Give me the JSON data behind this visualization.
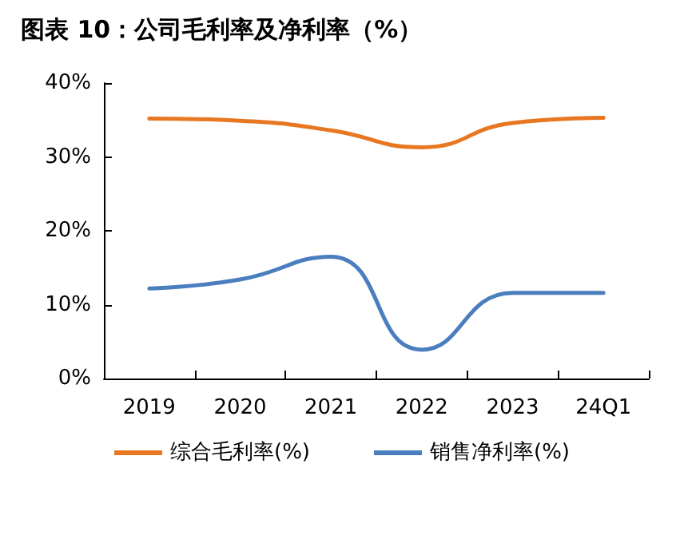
{
  "chart_data": {
    "type": "line",
    "title": "图表 10：公司毛利率及净利率（%）",
    "categories": [
      "2019",
      "2020",
      "2021",
      "2022",
      "2023",
      "24Q1"
    ],
    "series": [
      {
        "name": "综合毛利率(%)",
        "color": "#e87722",
        "values": [
          35.2,
          34.9,
          33.6,
          31.3,
          34.6,
          35.3
        ]
      },
      {
        "name": "销售净利率(%)",
        "color": "#4a7ebf",
        "values": [
          12.2,
          13.4,
          16.5,
          3.9,
          11.6,
          11.6
        ]
      }
    ],
    "ylim": [
      0,
      40
    ],
    "yticks": [
      {
        "value": 0,
        "label": "0%"
      },
      {
        "value": 10,
        "label": "10%"
      },
      {
        "value": 20,
        "label": "20%"
      },
      {
        "value": 30,
        "label": "30%"
      },
      {
        "value": 40,
        "label": "40%"
      }
    ],
    "grid": false,
    "legend": "bottom",
    "marker": "none",
    "line_style": "solid"
  }
}
